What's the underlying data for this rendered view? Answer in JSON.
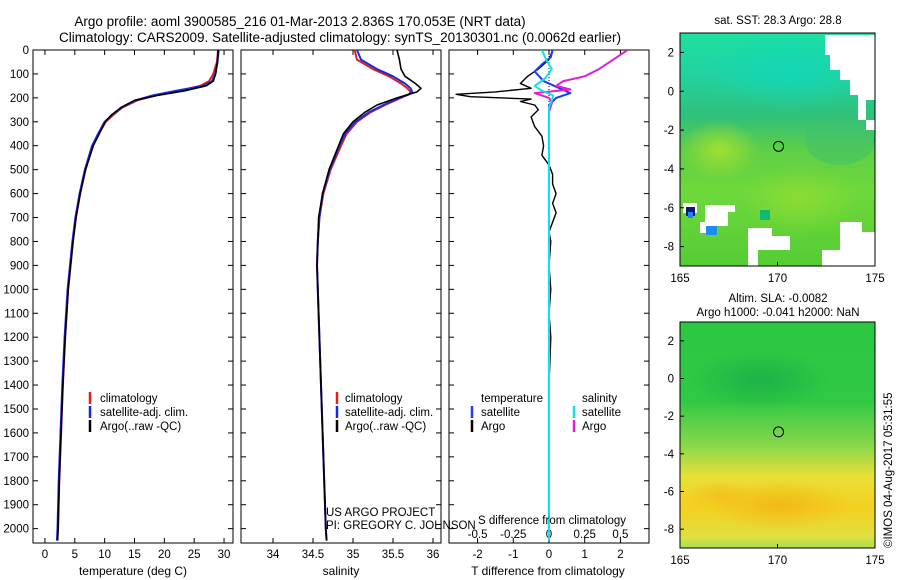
{
  "header": {
    "line1": "Argo profile: aoml 3900585_216 01-Mar-2013 2.836S 170.053E (NRT data)",
    "line2": "Climatology: CARS2009. Satellite-adjusted climatology: synTS_20130301.nc (0.0062d earlier)"
  },
  "colors": {
    "climatology": "#e0201b",
    "satellite_adj": "#1a2ae0",
    "argo": "#000000",
    "t_satellite": "#1a3cf0",
    "s_satellite": "#10e0e8",
    "s_argo": "#e020d0"
  },
  "annotations": {
    "project": "US ARGO PROJECT",
    "pi": "PI: GREGORY C. JOHNSON",
    "stamp": "©IMOS 04-Aug-2017 05:31:55"
  },
  "chart_data": [
    {
      "id": "temperature",
      "type": "line",
      "xlabel": "temperature (deg C)",
      "ylabel": "",
      "xlim": [
        -2,
        31.5
      ],
      "ylim": [
        2060,
        0
      ],
      "xticks": [
        0,
        5,
        10,
        15,
        20,
        25,
        30
      ],
      "yticks": [
        0,
        100,
        200,
        300,
        400,
        500,
        600,
        700,
        800,
        900,
        1000,
        1100,
        1200,
        1300,
        1400,
        1500,
        1600,
        1700,
        1800,
        1900,
        2000
      ],
      "depth": [
        0,
        50,
        100,
        130,
        150,
        170,
        190,
        210,
        240,
        270,
        300,
        350,
        400,
        500,
        600,
        700,
        800,
        900,
        1000,
        1200,
        1400,
        1600,
        1800,
        2000,
        2050
      ],
      "series": [
        {
          "name": "climatology",
          "color_key": "climatology",
          "values": [
            29.0,
            28.8,
            28.2,
            27.5,
            26.0,
            22.5,
            18.5,
            15.5,
            13.0,
            11.5,
            10.2,
            9.0,
            8.0,
            6.8,
            5.9,
            5.2,
            4.7,
            4.3,
            3.9,
            3.4,
            3.0,
            2.7,
            2.4,
            2.2,
            2.1
          ]
        },
        {
          "name": "satellite-adj. clim.",
          "color_key": "satellite_adj",
          "values": [
            29.1,
            28.9,
            28.5,
            28.0,
            26.5,
            22.0,
            18.0,
            15.2,
            12.8,
            11.3,
            10.0,
            8.9,
            7.9,
            6.7,
            5.8,
            5.1,
            4.6,
            4.2,
            3.8,
            3.3,
            2.9,
            2.6,
            2.3,
            2.1,
            2.0
          ]
        },
        {
          "name": "Argo(..raw -QC)",
          "color_key": "argo",
          "values": [
            29.0,
            28.9,
            28.6,
            28.2,
            27.0,
            23.5,
            18.8,
            15.0,
            12.8,
            11.2,
            10.1,
            9.1,
            8.1,
            6.8,
            5.9,
            5.2,
            4.7,
            4.3,
            3.9,
            3.4,
            3.0,
            2.7,
            2.4,
            2.2,
            2.1
          ]
        }
      ],
      "legend": {
        "position": "bottom-center",
        "entries": [
          "climatology",
          "satellite-adj. clim.",
          "Argo(..raw -QC)"
        ]
      }
    },
    {
      "id": "salinity",
      "type": "line",
      "xlabel": "salinity",
      "ylabel": "",
      "xlim": [
        33.6,
        36.1
      ],
      "ylim": [
        2060,
        0
      ],
      "xticks": [
        34,
        34.5,
        35,
        35.5,
        36
      ],
      "xticklabels": [
        "34",
        "34.5",
        "35",
        "35.5",
        "36"
      ],
      "depth": [
        0,
        40,
        80,
        110,
        140,
        160,
        175,
        185,
        200,
        230,
        260,
        300,
        350,
        400,
        500,
        600,
        700,
        800,
        900,
        1000,
        1200,
        1400,
        1600,
        1800,
        2000,
        2050
      ],
      "series": [
        {
          "name": "climatology",
          "color_key": "climatology",
          "values": [
            35.02,
            35.05,
            35.25,
            35.45,
            35.6,
            35.68,
            35.72,
            35.7,
            35.6,
            35.4,
            35.22,
            35.05,
            34.92,
            34.85,
            34.72,
            34.63,
            34.58,
            34.56,
            34.55,
            34.56,
            34.58,
            34.6,
            34.62,
            34.64,
            34.66,
            34.67
          ]
        },
        {
          "name": "satellite-adj. clim.",
          "color_key": "satellite_adj",
          "values": [
            35.05,
            35.1,
            35.3,
            35.5,
            35.65,
            35.72,
            35.74,
            35.7,
            35.58,
            35.38,
            35.2,
            35.03,
            34.9,
            34.83,
            34.71,
            34.62,
            34.58,
            34.56,
            34.55,
            34.56,
            34.58,
            34.6,
            34.62,
            34.64,
            34.66,
            34.67
          ]
        },
        {
          "name": "Argo(..raw -QC)",
          "color_key": "argo",
          "values": [
            35.55,
            35.58,
            35.6,
            35.65,
            35.78,
            35.85,
            35.8,
            35.7,
            35.55,
            35.3,
            35.15,
            35.0,
            34.88,
            34.82,
            34.7,
            34.62,
            34.57,
            34.56,
            34.55,
            34.56,
            34.58,
            34.6,
            34.62,
            34.64,
            34.66,
            34.67
          ]
        }
      ],
      "legend": {
        "position": "bottom-center",
        "entries": [
          "climatology",
          "satellite-adj. clim.",
          "Argo(..raw -QC)"
        ]
      }
    },
    {
      "id": "differences",
      "type": "line",
      "xlabel": "T difference from climatology",
      "xlabel_top": "S difference from climatology",
      "ylim": [
        2060,
        0
      ],
      "t_xlim": [
        -2.8,
        2.8
      ],
      "t_xticks": [
        -2,
        -1,
        0,
        1,
        2
      ],
      "s_xlim": [
        -0.7,
        0.7
      ],
      "s_xticks": [
        -0.5,
        -0.25,
        0,
        0.25,
        0.5
      ],
      "s_xticklabels": [
        "-0.5",
        "-0.25",
        "0",
        "0.25",
        "0.5"
      ],
      "series": [
        {
          "name": "temperature satellite",
          "color_key": "t_satellite",
          "axis": "T",
          "depth": [
            0,
            30,
            60,
            90,
            130,
            160,
            180,
            200,
            230,
            300,
            400,
            500,
            600,
            700,
            800,
            1000,
            1200,
            1400,
            1600,
            1800,
            2000
          ],
          "values": [
            0.1,
            0.05,
            -0.2,
            -0.4,
            -0.15,
            0.3,
            0.6,
            0.2,
            0.0,
            0.0,
            0.0,
            0.0,
            0.0,
            0.0,
            0.0,
            0.0,
            0.0,
            0.0,
            0.0,
            0.0,
            0.0
          ]
        },
        {
          "name": "temperature Argo",
          "color_key": "argo",
          "axis": "T",
          "depth": [
            0,
            40,
            80,
            110,
            140,
            160,
            175,
            185,
            195,
            205,
            215,
            230,
            250,
            280,
            320,
            360,
            400,
            440,
            480,
            520,
            560,
            600,
            640,
            680,
            720,
            760,
            800,
            900,
            1000,
            1100,
            1200,
            1400,
            1600,
            1800,
            2000
          ],
          "values": [
            0.1,
            0.0,
            -0.3,
            -0.6,
            -0.8,
            -0.5,
            -1.5,
            -2.6,
            -2.2,
            -0.5,
            -0.8,
            -0.4,
            -0.3,
            -0.5,
            -0.4,
            -0.2,
            -0.15,
            -0.2,
            0.0,
            0.1,
            0.1,
            0.2,
            0.1,
            0.2,
            0.1,
            0.0,
            0.05,
            0.0,
            0.05,
            0.0,
            0.05,
            0.0,
            0.0,
            0.0,
            0.0
          ]
        },
        {
          "name": "salinity satellite",
          "color_key": "s_satellite",
          "axis": "S",
          "depth": [
            0,
            40,
            80,
            120,
            150,
            170,
            190,
            210,
            240,
            300,
            400,
            600,
            800,
            1000,
            1400,
            1800,
            2050
          ],
          "values": [
            -0.05,
            -0.02,
            0.02,
            -0.03,
            -0.1,
            -0.05,
            0.03,
            0.02,
            0.0,
            0.0,
            0.0,
            0.0,
            0.0,
            0.0,
            0.0,
            0.0,
            0.0
          ]
        },
        {
          "name": "salinity Argo",
          "color_key": "s_argo",
          "axis": "S",
          "depth": [
            0,
            40,
            80,
            110,
            130,
            150,
            165,
            180,
            200,
            220,
            260,
            300,
            400,
            600,
            800,
            1000,
            1400,
            1800,
            2050
          ],
          "values": [
            0.55,
            0.45,
            0.35,
            0.25,
            0.1,
            0.05,
            0.15,
            -0.1,
            0.0,
            0.02,
            0.0,
            0.0,
            0.0,
            0.0,
            0.0,
            0.0,
            0.0,
            0.0,
            0.0
          ]
        }
      ],
      "legend": {
        "temperature_title": "temperature",
        "salinity_title": "salinity",
        "entries": [
          "satellite",
          "Argo",
          "satellite",
          "Argo"
        ]
      }
    },
    {
      "id": "sst_map",
      "type": "heatmap",
      "title": "sat. SST: 28.3 Argo: 28.8",
      "xlim": [
        165,
        175
      ],
      "ylim": [
        -9,
        3
      ],
      "xticks": [
        165,
        170,
        175
      ],
      "yticks": [
        -8,
        -6,
        -4,
        -2,
        0,
        2
      ],
      "marker": {
        "lon": 170.053,
        "lat": -2.836
      }
    },
    {
      "id": "sla_map",
      "type": "heatmap",
      "title": "Altim. SLA: -0.0082",
      "subtitle": "Argo h1000: -0.041 h2000: NaN",
      "xlim": [
        165,
        175
      ],
      "ylim": [
        -9,
        3
      ],
      "xticks": [
        165,
        170,
        175
      ],
      "yticks": [
        -8,
        -6,
        -4,
        -2,
        0,
        2
      ],
      "marker": {
        "lon": 170.053,
        "lat": -2.836
      }
    }
  ]
}
